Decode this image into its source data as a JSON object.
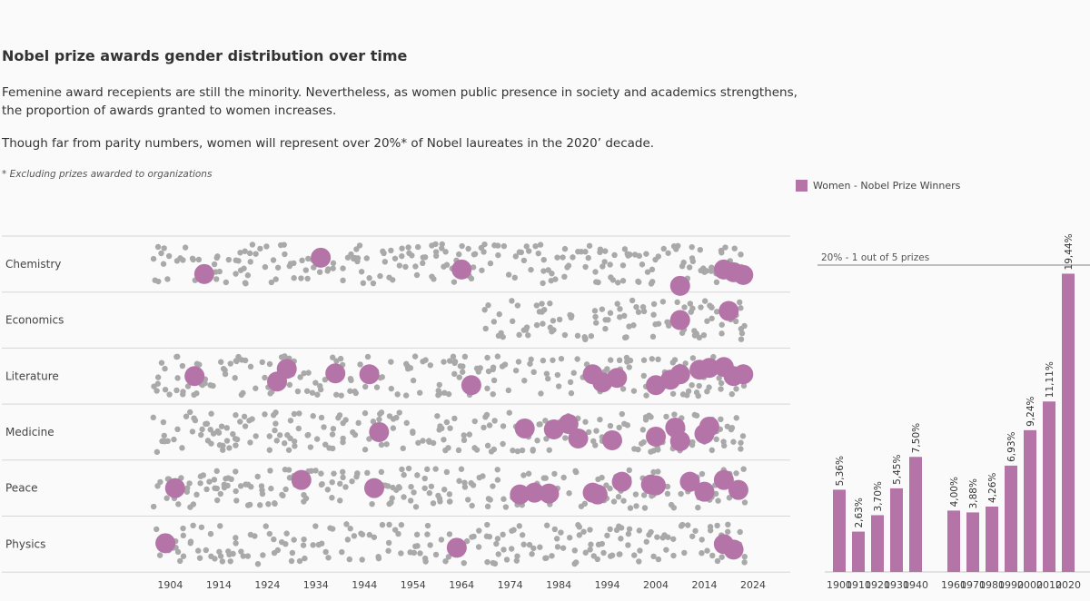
{
  "header": {
    "title": "Nobel prize awards gender distribution over time",
    "desc1": "Femenine award recepients are still the minority. Nevertheless, as women public presence in society and academics strengthens, the proportion of awards granted to women increases.",
    "desc2": "Though far from parity numbers, women will represent over 20%* of Nobel laureates in the 2020’ decade.",
    "footnote": "* Excluding prizes awarded to organizations"
  },
  "legend": {
    "label": "Women - Nobel Prize Winners",
    "color": "#b474a8"
  },
  "chart_data": [
    {
      "type": "scatter",
      "categories": [
        "Chemistry",
        "Economics",
        "Literature",
        "Medicine",
        "Peace",
        "Physics"
      ],
      "x_ticks": [
        "1904",
        "1914",
        "1924",
        "1934",
        "1944",
        "1954",
        "1964",
        "1974",
        "1984",
        "1994",
        "2004",
        "2014",
        "2024"
      ],
      "xlim": [
        1897,
        2027
      ],
      "colors": {
        "men": "#a9a9a9",
        "women": "#b474a8"
      },
      "category_start": {
        "Chemistry": 1901,
        "Economics": 1969,
        "Literature": 1901,
        "Medicine": 1901,
        "Peace": 1901,
        "Physics": 1901
      },
      "women": {
        "Chemistry": [
          [
            1911,
            0.55
          ],
          [
            1935,
            -0.35
          ],
          [
            1964,
            0.3
          ],
          [
            2009,
            1.2
          ],
          [
            2018,
            0.3
          ],
          [
            2020,
            0.45
          ],
          [
            2022,
            0.6
          ]
        ],
        "Economics": [
          [
            2009,
            0.0
          ],
          [
            2019,
            -0.5
          ]
        ],
        "Literature": [
          [
            1909,
            0.0
          ],
          [
            1926,
            0.3
          ],
          [
            1928,
            -0.4
          ],
          [
            1938,
            -0.15
          ],
          [
            1945,
            -0.1
          ],
          [
            1966,
            0.5
          ],
          [
            1991,
            -0.1
          ],
          [
            1993,
            0.35
          ],
          [
            1996,
            0.1
          ],
          [
            2004,
            0.5
          ],
          [
            2007,
            0.2
          ],
          [
            2009,
            -0.1
          ],
          [
            2013,
            -0.35
          ],
          [
            2015,
            -0.45
          ],
          [
            2018,
            -0.5
          ],
          [
            2020,
            0.0
          ],
          [
            2022,
            -0.1
          ]
        ],
        "Medicine": [
          [
            1947,
            0.0
          ],
          [
            1977,
            -0.2
          ],
          [
            1983,
            -0.15
          ],
          [
            1986,
            -0.45
          ],
          [
            1988,
            0.35
          ],
          [
            1995,
            0.45
          ],
          [
            2004,
            0.25
          ],
          [
            2008,
            -0.25
          ],
          [
            2009,
            0.5
          ],
          [
            2014,
            0.1
          ],
          [
            2015,
            -0.3
          ]
        ],
        "Peace": [
          [
            1905,
            0.0
          ],
          [
            1931,
            -0.45
          ],
          [
            1946,
            0.0
          ],
          [
            1976,
            0.35
          ],
          [
            1979,
            0.25
          ],
          [
            1982,
            0.3
          ],
          [
            1991,
            0.25
          ],
          [
            1992,
            0.35
          ],
          [
            1997,
            -0.35
          ],
          [
            2003,
            -0.2
          ],
          [
            2004,
            -0.15
          ],
          [
            2011,
            -0.35
          ],
          [
            2014,
            0.2
          ],
          [
            2018,
            -0.45
          ],
          [
            2021,
            0.1
          ]
        ],
        "Physics": [
          [
            1903,
            -0.05
          ],
          [
            1963,
            0.2
          ],
          [
            2018,
            0.0
          ],
          [
            2020,
            0.3
          ]
        ]
      }
    },
    {
      "type": "bar",
      "title": "",
      "categories": [
        "1900",
        "1910",
        "1920",
        "1930",
        "1940",
        "1960",
        "1970",
        "1980",
        "1990",
        "2000",
        "2010",
        "2020"
      ],
      "values": [
        5.36,
        2.63,
        3.7,
        5.45,
        7.5,
        4.0,
        3.88,
        4.26,
        6.93,
        9.24,
        11.11,
        19.44
      ],
      "labels": [
        "5,36%",
        "2,63%",
        "3,70%",
        "5,45%",
        "7,50%",
        "4,00%",
        "3,88%",
        "4,26%",
        "6,93%",
        "9,24%",
        "11,11%",
        "19,44%"
      ],
      "ylim": [
        0,
        20
      ],
      "reference_line": {
        "value": 20,
        "label": "20% - 1 out of 5 prizes"
      },
      "color": "#b474a8"
    }
  ]
}
